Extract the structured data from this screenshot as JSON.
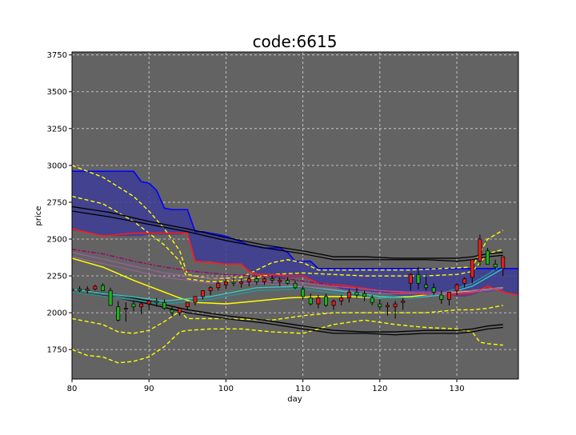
{
  "chart_data": {
    "type": "candlestick",
    "title": "code:6615",
    "xlabel": "day",
    "ylabel": "price",
    "xlim": [
      80,
      138
    ],
    "ylim": [
      1550,
      3770
    ],
    "xticks": [
      80,
      90,
      100,
      110,
      120,
      130
    ],
    "yticks": [
      1750,
      2000,
      2250,
      2500,
      2750,
      3000,
      3250,
      3500,
      3750
    ],
    "grid": true,
    "background_color": "#636363",
    "candles": {
      "x": [
        80,
        81,
        82,
        83,
        84,
        85,
        86,
        87,
        88,
        89,
        90,
        91,
        92,
        93,
        94,
        95,
        96,
        97,
        98,
        99,
        100,
        101,
        102,
        103,
        104,
        105,
        106,
        107,
        108,
        109,
        110,
        111,
        112,
        113,
        114,
        115,
        116,
        117,
        118,
        119,
        120,
        121,
        122,
        123,
        124,
        125,
        126,
        127,
        128,
        129,
        130,
        131,
        132,
        133,
        134,
        135,
        136
      ],
      "open": [
        2150,
        2160,
        2150,
        2160,
        2185,
        2150,
        2040,
        2030,
        2060,
        2040,
        2060,
        2080,
        2070,
        2020,
        2000,
        2040,
        2070,
        2110,
        2150,
        2170,
        2190,
        2210,
        2200,
        2210,
        2230,
        2210,
        2230,
        2210,
        2220,
        2200,
        2160,
        2100,
        2060,
        2110,
        2050,
        2080,
        2100,
        2140,
        2130,
        2100,
        2060,
        2040,
        2040,
        2070,
        2200,
        2260,
        2190,
        2170,
        2120,
        2090,
        2150,
        2200,
        2240,
        2350,
        2420,
        2330,
        2300
      ],
      "high": [
        2170,
        2180,
        2180,
        2190,
        2200,
        2170,
        2080,
        2070,
        2080,
        2070,
        2090,
        2100,
        2090,
        2040,
        2030,
        2070,
        2100,
        2150,
        2180,
        2210,
        2230,
        2240,
        2230,
        2250,
        2250,
        2240,
        2250,
        2240,
        2240,
        2220,
        2180,
        2130,
        2120,
        2130,
        2090,
        2120,
        2160,
        2170,
        2150,
        2120,
        2090,
        2070,
        2080,
        2100,
        2270,
        2310,
        2260,
        2200,
        2150,
        2140,
        2200,
        2240,
        2280,
        2530,
        2440,
        2360,
        2330
      ],
      "low": [
        2130,
        2140,
        2130,
        2150,
        2160,
        2080,
        1940,
        1940,
        2010,
        1990,
        2020,
        2040,
        2020,
        1980,
        1980,
        2020,
        2050,
        2090,
        2120,
        2150,
        2160,
        2180,
        2170,
        2180,
        2190,
        2190,
        2200,
        2180,
        2190,
        2160,
        2090,
        2050,
        2030,
        2040,
        2020,
        2050,
        2070,
        2100,
        2080,
        2050,
        2020,
        1980,
        1960,
        2020,
        2150,
        2160,
        2150,
        2120,
        2060,
        2050,
        2120,
        2170,
        2200,
        2320,
        2330,
        2290,
        2250
      ],
      "close": [
        2160,
        2150,
        2160,
        2180,
        2150,
        2050,
        1950,
        2030,
        2040,
        2060,
        2080,
        2070,
        2030,
        2000,
        2030,
        2070,
        2110,
        2150,
        2170,
        2200,
        2210,
        2200,
        2210,
        2230,
        2210,
        2230,
        2220,
        2220,
        2200,
        2170,
        2110,
        2060,
        2100,
        2050,
        2080,
        2100,
        2140,
        2120,
        2110,
        2070,
        2040,
        2050,
        2060,
        2080,
        2260,
        2200,
        2170,
        2140,
        2090,
        2140,
        2190,
        2230,
        2360,
        2500,
        2330,
        2310,
        2380
      ]
    },
    "kumo": {
      "x": [
        80,
        85,
        88,
        89,
        90,
        91,
        92,
        93,
        94,
        95,
        96,
        97,
        98,
        99,
        100,
        101,
        102,
        103,
        104,
        105,
        106,
        107,
        108,
        109,
        110,
        111,
        112,
        113,
        114,
        115,
        116,
        117,
        118,
        119,
        120,
        121,
        122,
        123,
        124,
        125,
        126,
        127,
        128,
        129,
        130,
        131,
        132,
        133,
        134,
        135,
        136,
        137,
        138
      ],
      "span_a": [
        2560,
        2520,
        2520,
        2520,
        2530,
        2530,
        2530,
        2530,
        2530,
        2540,
        2350,
        2350,
        2350,
        2340,
        2330,
        2330,
        2330,
        2280,
        2270,
        2260,
        2240,
        2240,
        2240,
        2240,
        2240,
        2220,
        2200,
        2190,
        2180,
        2160,
        2150,
        2150,
        2150,
        2140,
        2140,
        2130,
        2120,
        2110,
        2100,
        2110,
        2110,
        2120,
        2120,
        2120,
        2110,
        2110,
        2120,
        2140,
        2140,
        2150,
        2150,
        2130,
        2120
      ],
      "span_b": [
        2960,
        2960,
        2960,
        2890,
        2880,
        2830,
        2710,
        2700,
        2700,
        2700,
        2550,
        2550,
        2540,
        2530,
        2520,
        2500,
        2480,
        2460,
        2450,
        2440,
        2440,
        2440,
        2410,
        2350,
        2350,
        2350,
        2300,
        2300,
        2300,
        2300,
        2300,
        2300,
        2300,
        2300,
        2300,
        2300,
        2300,
        2300,
        2300,
        2300,
        2300,
        2300,
        2300,
        2300,
        2300,
        2300,
        2300,
        2300,
        2300,
        2300,
        2300,
        2300,
        2300
      ]
    },
    "series": [
      {
        "key": "bb_sigma2_upper",
        "style": "yellow-dashed",
        "x": [
          80,
          84,
          88,
          90,
          92,
          94,
          95,
          98,
          102,
          106,
          108,
          110,
          112,
          116,
          120,
          124,
          128,
          132,
          134,
          136
        ],
        "y": [
          3000,
          2920,
          2790,
          2690,
          2570,
          2420,
          2260,
          2230,
          2240,
          2340,
          2360,
          2340,
          2290,
          2290,
          2290,
          2290,
          2300,
          2310,
          2500,
          2560
        ]
      },
      {
        "key": "bb_sigma1_upper",
        "style": "yellow-dashed",
        "x": [
          80,
          84,
          88,
          90,
          92,
          94,
          95,
          98,
          102,
          106,
          110,
          114,
          118,
          122,
          126,
          130,
          132,
          134,
          136
        ],
        "y": [
          2790,
          2740,
          2620,
          2540,
          2460,
          2350,
          2230,
          2210,
          2220,
          2260,
          2270,
          2260,
          2250,
          2250,
          2250,
          2260,
          2280,
          2400,
          2430
        ]
      },
      {
        "key": "bb_sigma1_lower",
        "style": "yellow-dashed",
        "x": [
          80,
          84,
          86,
          88,
          90,
          92,
          94,
          95,
          100,
          106,
          110,
          114,
          118,
          122,
          126,
          130,
          132,
          134,
          136
        ],
        "y": [
          1960,
          1920,
          1870,
          1860,
          1880,
          1940,
          2010,
          1960,
          1960,
          1950,
          1980,
          2000,
          2000,
          2000,
          2000,
          2020,
          2020,
          2030,
          2050
        ]
      },
      {
        "key": "bb_sigma2_lower",
        "style": "yellow-dashed",
        "x": [
          80,
          82,
          84,
          86,
          88,
          90,
          92,
          94,
          95,
          98,
          102,
          106,
          110,
          114,
          118,
          122,
          126,
          130,
          132,
          133,
          134,
          136
        ],
        "y": [
          1750,
          1710,
          1700,
          1660,
          1670,
          1700,
          1770,
          1870,
          1880,
          1890,
          1890,
          1870,
          1860,
          1920,
          1950,
          1920,
          1900,
          1890,
          1870,
          1800,
          1790,
          1780
        ]
      },
      {
        "key": "ma_long_1",
        "style": "black-solid",
        "x": [
          80,
          85,
          90,
          95,
          100,
          105,
          110,
          114,
          118,
          122,
          126,
          130,
          132,
          134,
          136
        ],
        "y": [
          2720,
          2680,
          2620,
          2570,
          2510,
          2460,
          2420,
          2380,
          2380,
          2370,
          2370,
          2370,
          2380,
          2400,
          2410
        ]
      },
      {
        "key": "ma_long_2",
        "style": "black-solid",
        "x": [
          80,
          85,
          90,
          95,
          100,
          105,
          110,
          114,
          118,
          122,
          126,
          130,
          132,
          134,
          136
        ],
        "y": [
          2690,
          2650,
          2600,
          2550,
          2490,
          2440,
          2400,
          2360,
          2360,
          2360,
          2360,
          2350,
          2360,
          2380,
          2390
        ]
      },
      {
        "key": "ma_low_1",
        "style": "black-solid",
        "x": [
          80,
          85,
          90,
          95,
          100,
          105,
          110,
          114,
          118,
          122,
          126,
          130,
          132,
          134,
          136
        ],
        "y": [
          2160,
          2130,
          2080,
          2020,
          1980,
          1950,
          1910,
          1880,
          1870,
          1870,
          1880,
          1880,
          1890,
          1910,
          1920
        ]
      },
      {
        "key": "ma_low_2",
        "style": "black-solid",
        "x": [
          80,
          85,
          90,
          95,
          100,
          105,
          110,
          114,
          118,
          122,
          126,
          130,
          132,
          134,
          136
        ],
        "y": [
          2140,
          2110,
          2060,
          2000,
          1960,
          1930,
          1890,
          1860,
          1860,
          1850,
          1860,
          1860,
          1870,
          1890,
          1900
        ]
      },
      {
        "key": "ma_mid",
        "style": "yellow-solid",
        "x": [
          80,
          84,
          88,
          90,
          92,
          94,
          96,
          100,
          104,
          108,
          112,
          116,
          120,
          124,
          128,
          132,
          136
        ],
        "y": [
          2370,
          2310,
          2220,
          2180,
          2140,
          2100,
          2070,
          2060,
          2080,
          2100,
          2110,
          2110,
          2100,
          2110,
          2130,
          2150,
          2170
        ]
      },
      {
        "key": "tenkan",
        "style": "red-solid",
        "x": [
          80,
          84,
          88,
          92,
          95,
          96,
          100,
          102,
          103,
          104,
          106,
          108,
          110,
          112,
          116,
          120,
          124,
          128,
          132,
          134,
          136,
          138
        ],
        "y": [
          2570,
          2520,
          2540,
          2540,
          2540,
          2350,
          2330,
          2330,
          2280,
          2260,
          2260,
          2250,
          2250,
          2200,
          2180,
          2150,
          2130,
          2120,
          2130,
          2180,
          2140,
          2120
        ]
      },
      {
        "key": "kijun",
        "style": "magenta-dashdot",
        "x": [
          80,
          84,
          88,
          92,
          96,
          100,
          104,
          108,
          112,
          116,
          120,
          124,
          128,
          132,
          136
        ],
        "y": [
          2430,
          2400,
          2350,
          2310,
          2280,
          2260,
          2250,
          2230,
          2200,
          2170,
          2150,
          2140,
          2130,
          2140,
          2160
        ]
      },
      {
        "key": "ma_fan_1",
        "style": "cyan-solid",
        "x": [
          80,
          86,
          92,
          98,
          104,
          110,
          116,
          120,
          124,
          128,
          132,
          134,
          136
        ],
        "y": [
          2160,
          2120,
          2080,
          2110,
          2170,
          2180,
          2140,
          2110,
          2100,
          2120,
          2180,
          2240,
          2300
        ]
      },
      {
        "key": "ma_fan_2",
        "style": "teal-solid",
        "x": [
          80,
          86,
          92,
          98,
          104,
          110,
          116,
          120,
          124,
          128,
          132,
          134,
          136
        ],
        "y": [
          2140,
          2100,
          2060,
          2090,
          2150,
          2160,
          2120,
          2100,
          2100,
          2130,
          2200,
          2260,
          2330
        ]
      },
      {
        "key": "ma_fan_3",
        "style": "purple-solid",
        "x": [
          80,
          86,
          92,
          98,
          104,
          110,
          116,
          120,
          124,
          128,
          132,
          136
        ],
        "y": [
          2410,
          2340,
          2270,
          2230,
          2220,
          2200,
          2170,
          2150,
          2140,
          2140,
          2150,
          2170
        ]
      },
      {
        "key": "ma_fan_4",
        "style": "purple-solid",
        "x": [
          80,
          86,
          92,
          98,
          104,
          110,
          116,
          120,
          124,
          128,
          132,
          136
        ],
        "y": [
          2380,
          2310,
          2240,
          2200,
          2200,
          2180,
          2150,
          2130,
          2130,
          2130,
          2140,
          2160
        ]
      }
    ]
  }
}
